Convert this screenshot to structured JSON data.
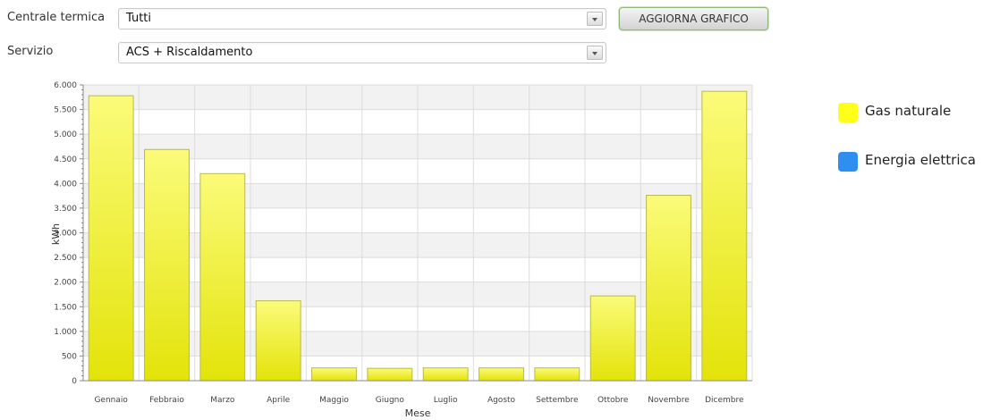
{
  "filters": {
    "centrale_label": "Centrale termica",
    "centrale_value": "Tutti",
    "servizio_label": "Servizio",
    "servizio_value": "ACS + Riscaldamento",
    "update_button": "AGGIORNA GRAFICO"
  },
  "legend": {
    "items": [
      {
        "label": "Gas naturale",
        "color": "#ffff1a",
        "icon": "legend-swatch"
      },
      {
        "label": "Energia elettrica",
        "color": "#2f8ff0",
        "icon": "legend-swatch"
      }
    ]
  },
  "colors": {
    "bar_top": "#fbfb7a",
    "bar_bottom": "#e3e30a",
    "bar_stroke": "#b9b94a",
    "band": "#f2f2f2",
    "grid": "#dcdcdc",
    "axis": "#888888"
  },
  "chart_data": {
    "type": "bar",
    "xlabel": "Mese",
    "ylabel": "kWh",
    "ylim": [
      0,
      6000
    ],
    "yticks": [
      0,
      500,
      1000,
      1500,
      2000,
      2500,
      3000,
      3500,
      4000,
      4500,
      5000,
      5500,
      6000
    ],
    "ytick_labels": [
      "0",
      "500",
      "1.000",
      "1.500",
      "2.000",
      "2.500",
      "3.000",
      "3.500",
      "4.000",
      "4.500",
      "5.000",
      "5.500",
      "6.000"
    ],
    "categories": [
      "Gennaio",
      "Febbraio",
      "Marzo",
      "Aprile",
      "Maggio",
      "Giugno",
      "Luglio",
      "Agosto",
      "Settembre",
      "Ottobre",
      "Novembre",
      "Dicembre"
    ],
    "series": [
      {
        "name": "Gas naturale",
        "values": [
          5780,
          4690,
          4200,
          1620,
          260,
          250,
          260,
          260,
          260,
          1720,
          3760,
          5870
        ]
      },
      {
        "name": "Energia elettrica",
        "values": [
          0,
          0,
          0,
          0,
          0,
          0,
          0,
          0,
          0,
          0,
          0,
          0
        ]
      }
    ],
    "legend_position": "right",
    "grid": true
  }
}
